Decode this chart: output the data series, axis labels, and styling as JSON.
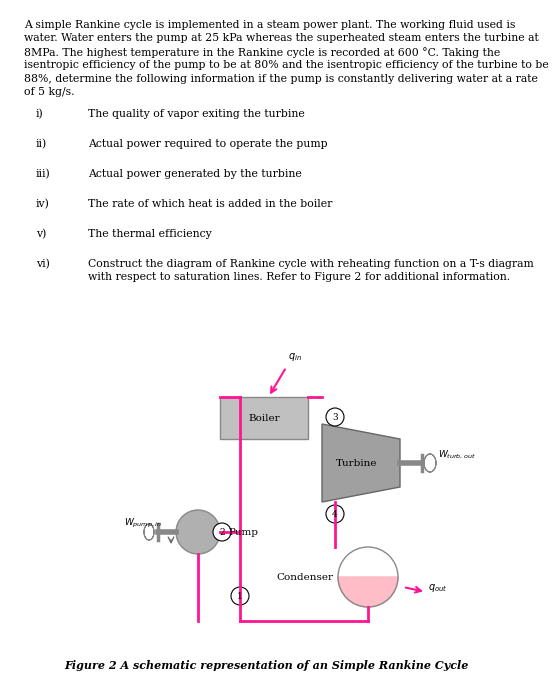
{
  "bg_color": "#FFFFFF",
  "line_color": "#FF1493",
  "text_color": "#000000",
  "figure_caption": "Figure 2 A schematic representation of an Simple Rankine Cycle",
  "intro_lines": [
    "A simple Rankine cycle is implemented in a steam power plant. The working fluid used is",
    "water. Water enters the pump at 25 kPa whereas the superheated steam enters the turbine at",
    "8MPa. The highest temperature in the Rankine cycle is recorded at 600 °C. Taking the",
    "isentropic efficiency of the pump to be at 80% and the isentropic efficiency of the turbine to be",
    "88%, determine the following information if the pump is constantly delivering water at a rate",
    "of 5 kg/s."
  ],
  "items": [
    {
      "label": "i)",
      "text": "The quality of vapor exiting the turbine"
    },
    {
      "label": "ii)",
      "text": "Actual power required to operate the pump"
    },
    {
      "label": "iii)",
      "text": "Actual power generated by the turbine"
    },
    {
      "label": "iv)",
      "text": "The rate of which heat is added in the boiler"
    },
    {
      "label": "v)",
      "text": "The thermal efficiency"
    },
    {
      "label": "vi)",
      "text1": "Construct the diagram of Rankine cycle with reheating function on a T-s diagram",
      "text2": "with respect to saturation lines. Refer to Figure 2 for additional information."
    }
  ]
}
